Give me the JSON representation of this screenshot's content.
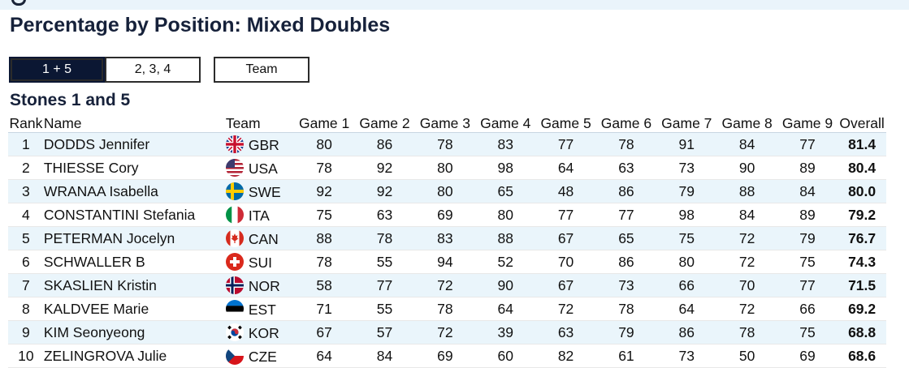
{
  "page": {
    "title": "Percentage by Position: Mixed Doubles",
    "section_title": "Stones 1 and 5"
  },
  "tabs": [
    {
      "label": "1 + 5",
      "active": true
    },
    {
      "label": "2, 3, 4",
      "active": false
    },
    {
      "label": "Team",
      "active": false
    }
  ],
  "table": {
    "headers": [
      "Rank",
      "Name",
      "Team",
      "Game 1",
      "Game 2",
      "Game 3",
      "Game 4",
      "Game 5",
      "Game 6",
      "Game 7",
      "Game 8",
      "Game 9",
      "Overall"
    ],
    "rows": [
      {
        "rank": "1",
        "name": "DODDS Jennifer",
        "team": "GBR",
        "flag": "gbr-flag-icon",
        "games": [
          "80",
          "86",
          "78",
          "83",
          "77",
          "78",
          "91",
          "84",
          "77"
        ],
        "overall": "81.4"
      },
      {
        "rank": "2",
        "name": "THIESSE Cory",
        "team": "USA",
        "flag": "usa-flag-icon",
        "games": [
          "78",
          "92",
          "80",
          "98",
          "64",
          "63",
          "73",
          "90",
          "89"
        ],
        "overall": "80.4"
      },
      {
        "rank": "3",
        "name": "WRANAA Isabella",
        "team": "SWE",
        "flag": "swe-flag-icon",
        "games": [
          "92",
          "92",
          "80",
          "65",
          "48",
          "86",
          "79",
          "88",
          "84"
        ],
        "overall": "80.0"
      },
      {
        "rank": "4",
        "name": "CONSTANTINI Stefania",
        "team": "ITA",
        "flag": "ita-flag-icon",
        "games": [
          "75",
          "63",
          "69",
          "80",
          "77",
          "77",
          "98",
          "84",
          "89"
        ],
        "overall": "79.2"
      },
      {
        "rank": "5",
        "name": "PETERMAN Jocelyn",
        "team": "CAN",
        "flag": "can-flag-icon",
        "games": [
          "88",
          "78",
          "83",
          "88",
          "67",
          "65",
          "75",
          "72",
          "79"
        ],
        "overall": "76.7"
      },
      {
        "rank": "6",
        "name": "SCHWALLER B",
        "team": "SUI",
        "flag": "sui-flag-icon",
        "games": [
          "78",
          "55",
          "94",
          "52",
          "70",
          "86",
          "80",
          "72",
          "75"
        ],
        "overall": "74.3"
      },
      {
        "rank": "7",
        "name": "SKASLIEN Kristin",
        "team": "NOR",
        "flag": "nor-flag-icon",
        "games": [
          "58",
          "77",
          "72",
          "90",
          "67",
          "73",
          "66",
          "70",
          "77"
        ],
        "overall": "71.5"
      },
      {
        "rank": "8",
        "name": "KALDVEE Marie",
        "team": "EST",
        "flag": "est-flag-icon",
        "games": [
          "71",
          "55",
          "78",
          "64",
          "72",
          "78",
          "64",
          "72",
          "66"
        ],
        "overall": "69.2"
      },
      {
        "rank": "9",
        "name": "KIM Seonyeong",
        "team": "KOR",
        "flag": "kor-flag-icon",
        "games": [
          "67",
          "57",
          "72",
          "39",
          "63",
          "79",
          "86",
          "78",
          "75"
        ],
        "overall": "68.8"
      },
      {
        "rank": "10",
        "name": "ZELINGROVA Julie",
        "team": "CZE",
        "flag": "cze-flag-icon",
        "games": [
          "64",
          "84",
          "69",
          "60",
          "82",
          "61",
          "73",
          "50",
          "69"
        ],
        "overall": "68.6"
      }
    ]
  },
  "colors": {
    "heading": "#16213a",
    "active_tab": "#0b1733",
    "row_stripe": "#eaf5fb"
  }
}
